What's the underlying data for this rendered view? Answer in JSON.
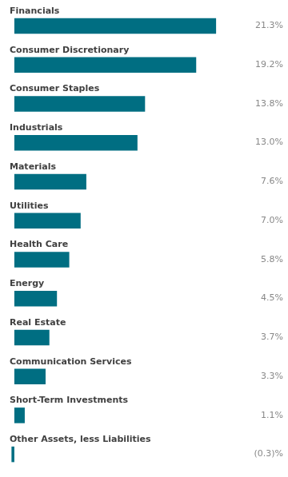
{
  "chart_data": {
    "type": "bar",
    "orientation": "horizontal",
    "categories": [
      "Financials",
      "Consumer Discretionary",
      "Consumer Staples",
      "Industrials",
      "Materials",
      "Utilities",
      "Health Care",
      "Energy",
      "Real Estate",
      "Communication Services",
      "Short-Term Investments",
      "Other Assets, less Liabilities"
    ],
    "values": [
      21.3,
      19.2,
      13.8,
      13.0,
      7.6,
      7.0,
      5.8,
      4.5,
      3.7,
      3.3,
      1.1,
      -0.3
    ],
    "value_labels": [
      "21.3%",
      "19.2%",
      "13.8%",
      "13.0%",
      "7.6%",
      "7.0%",
      "5.8%",
      "4.5%",
      "3.7%",
      "3.3%",
      "1.1%",
      "(0.3)%"
    ],
    "data_labels": true,
    "color": "#006E82",
    "xlim": [
      -0.5,
      24.5
    ],
    "tick_labels": false,
    "grid": false
  }
}
